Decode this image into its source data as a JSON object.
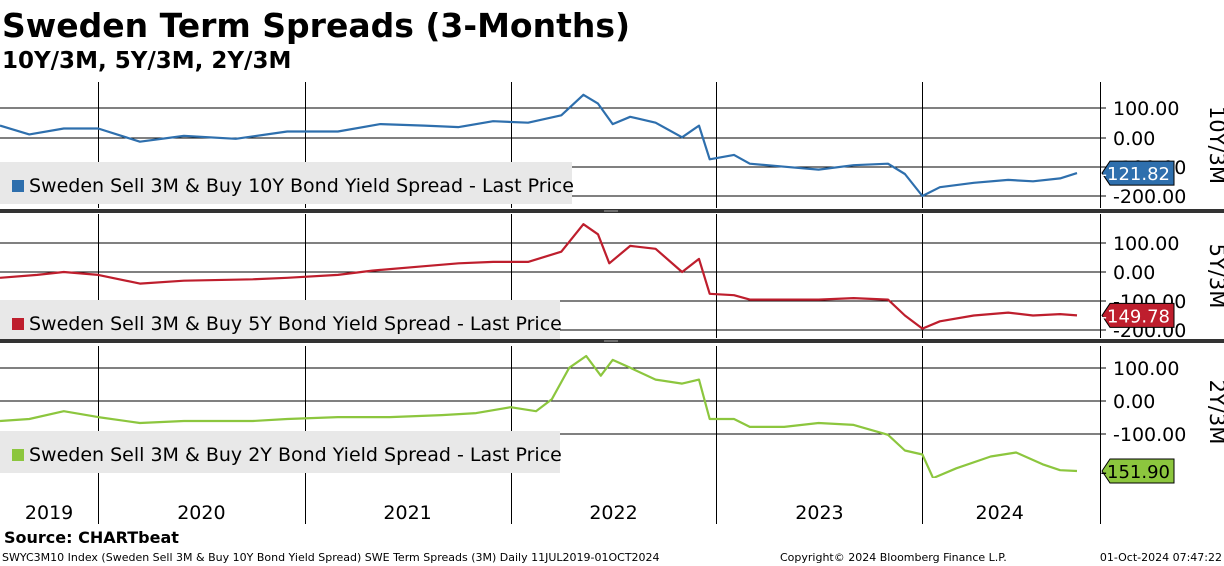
{
  "title": "Sweden Term Spreads (3-Months)",
  "subtitle": "10Y/3M, 5Y/3M, 2Y/3M",
  "source": "Source: CHARTbeat",
  "footer_left": "SWYC3M10 Index (Sweden Sell 3M & Buy 10Y Bond Yield Spread) SWE Term Spreads (3M)  Daily 11JUL2019-01OCT2024",
  "footer_mid": "Copyright© 2024 Bloomberg Finance L.P.",
  "footer_right": "01-Oct-2024 07:47:22",
  "chart_data": [
    {
      "type": "line",
      "panel_label": "10Y/3M",
      "color": "#2e6fad",
      "last_value_label": "-121.82",
      "y_ticks": [
        "100.00",
        "0.00",
        "-100.00",
        "-200.00"
      ],
      "ylim": [
        -200,
        100
      ],
      "series": [
        {
          "name": "Sweden Sell 3M & Buy 10Y Bond Yield Spread - Last Price",
          "points": [
            [
              "2019-07-11",
              40
            ],
            [
              "2019-09-01",
              10
            ],
            [
              "2019-11-01",
              30
            ],
            [
              "2020-01-01",
              30
            ],
            [
              "2020-03-15",
              -15
            ],
            [
              "2020-06-01",
              5
            ],
            [
              "2020-09-01",
              -5
            ],
            [
              "2020-12-01",
              20
            ],
            [
              "2021-03-01",
              20
            ],
            [
              "2021-05-15",
              45
            ],
            [
              "2021-08-01",
              40
            ],
            [
              "2021-10-01",
              35
            ],
            [
              "2021-12-01",
              55
            ],
            [
              "2022-02-01",
              50
            ],
            [
              "2022-04-01",
              75
            ],
            [
              "2022-05-10",
              145
            ],
            [
              "2022-06-05",
              115
            ],
            [
              "2022-07-01",
              45
            ],
            [
              "2022-08-01",
              70
            ],
            [
              "2022-09-15",
              50
            ],
            [
              "2022-11-01",
              0
            ],
            [
              "2022-12-01",
              40
            ],
            [
              "2022-12-20",
              -75
            ],
            [
              "2023-02-01",
              -60
            ],
            [
              "2023-03-01",
              -90
            ],
            [
              "2023-05-01",
              -100
            ],
            [
              "2023-07-01",
              -110
            ],
            [
              "2023-09-01",
              -95
            ],
            [
              "2023-11-01",
              -90
            ],
            [
              "2023-12-01",
              -125
            ],
            [
              "2024-01-01",
              -200
            ],
            [
              "2024-02-01",
              -170
            ],
            [
              "2024-04-01",
              -155
            ],
            [
              "2024-06-01",
              -145
            ],
            [
              "2024-07-15",
              -150
            ],
            [
              "2024-09-01",
              -140
            ],
            [
              "2024-10-01",
              -121.82
            ]
          ]
        }
      ]
    },
    {
      "type": "line",
      "panel_label": "5Y/3M",
      "color": "#be1e2d",
      "last_value_label": "-149.78",
      "y_ticks": [
        "100.00",
        "0.00",
        "-100.00",
        "-200.00"
      ],
      "ylim": [
        -200,
        100
      ],
      "series": [
        {
          "name": "Sweden Sell 3M & Buy 5Y Bond Yield Spread - Last Price",
          "points": [
            [
              "2019-07-11",
              -20
            ],
            [
              "2019-09-15",
              -10
            ],
            [
              "2019-11-01",
              0
            ],
            [
              "2020-01-01",
              -10
            ],
            [
              "2020-03-15",
              -40
            ],
            [
              "2020-06-01",
              -30
            ],
            [
              "2020-10-01",
              -25
            ],
            [
              "2020-12-01",
              -20
            ],
            [
              "2021-03-01",
              -10
            ],
            [
              "2021-05-01",
              5
            ],
            [
              "2021-08-01",
              20
            ],
            [
              "2021-10-01",
              30
            ],
            [
              "2021-12-01",
              35
            ],
            [
              "2022-02-01",
              35
            ],
            [
              "2022-04-01",
              70
            ],
            [
              "2022-05-10",
              165
            ],
            [
              "2022-06-05",
              130
            ],
            [
              "2022-06-25",
              30
            ],
            [
              "2022-08-01",
              90
            ],
            [
              "2022-09-15",
              80
            ],
            [
              "2022-11-01",
              0
            ],
            [
              "2022-12-01",
              45
            ],
            [
              "2022-12-20",
              -75
            ],
            [
              "2023-02-01",
              -80
            ],
            [
              "2023-03-01",
              -95
            ],
            [
              "2023-05-01",
              -95
            ],
            [
              "2023-07-01",
              -95
            ],
            [
              "2023-09-01",
              -90
            ],
            [
              "2023-11-01",
              -95
            ],
            [
              "2023-12-01",
              -150
            ],
            [
              "2024-01-01",
              -195
            ],
            [
              "2024-02-01",
              -170
            ],
            [
              "2024-04-01",
              -150
            ],
            [
              "2024-06-01",
              -140
            ],
            [
              "2024-07-15",
              -150
            ],
            [
              "2024-09-01",
              -145
            ],
            [
              "2024-10-01",
              -149.78
            ]
          ]
        }
      ]
    },
    {
      "type": "line",
      "panel_label": "2Y/3M",
      "color": "#8cc63e",
      "last_value_label": "-151.90",
      "y_ticks": [
        "100.00",
        "0.00",
        "-100.00"
      ],
      "ylim": [
        -190,
        140
      ],
      "series": [
        {
          "name": "Sweden Sell 3M & Buy 2Y Bond Yield Spread - Last Price",
          "points": [
            [
              "2019-07-11",
              -25
            ],
            [
              "2019-09-01",
              -20
            ],
            [
              "2019-11-01",
              0
            ],
            [
              "2020-01-01",
              -15
            ],
            [
              "2020-03-15",
              -30
            ],
            [
              "2020-06-01",
              -25
            ],
            [
              "2020-10-01",
              -25
            ],
            [
              "2020-12-01",
              -20
            ],
            [
              "2021-03-01",
              -15
            ],
            [
              "2021-06-01",
              -15
            ],
            [
              "2021-09-01",
              -10
            ],
            [
              "2021-11-01",
              -5
            ],
            [
              "2022-01-01",
              10
            ],
            [
              "2022-02-15",
              0
            ],
            [
              "2022-03-15",
              30
            ],
            [
              "2022-04-15",
              110
            ],
            [
              "2022-05-15",
              140
            ],
            [
              "2022-06-10",
              90
            ],
            [
              "2022-07-01",
              130
            ],
            [
              "2022-08-01",
              110
            ],
            [
              "2022-09-15",
              80
            ],
            [
              "2022-11-01",
              70
            ],
            [
              "2022-12-01",
              80
            ],
            [
              "2022-12-20",
              -20
            ],
            [
              "2023-02-01",
              -20
            ],
            [
              "2023-03-01",
              -40
            ],
            [
              "2023-05-01",
              -40
            ],
            [
              "2023-07-01",
              -30
            ],
            [
              "2023-09-01",
              -35
            ],
            [
              "2023-11-01",
              -60
            ],
            [
              "2023-12-01",
              -100
            ],
            [
              "2024-01-01",
              -110
            ],
            [
              "2024-01-20",
              -170
            ],
            [
              "2024-03-01",
              -145
            ],
            [
              "2024-05-01",
              -115
            ],
            [
              "2024-06-15",
              -105
            ],
            [
              "2024-08-01",
              -135
            ],
            [
              "2024-09-01",
              -150
            ],
            [
              "2024-10-01",
              -151.9
            ]
          ]
        }
      ]
    }
  ],
  "x_axis": {
    "years": [
      "2019",
      "2020",
      "2021",
      "2022",
      "2023",
      "2024"
    ],
    "start": "2019-07-11",
    "end": "2024-10-01"
  }
}
